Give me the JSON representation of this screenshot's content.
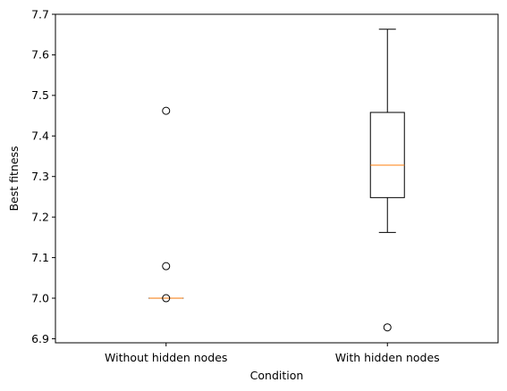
{
  "chart_data": {
    "type": "box",
    "xlabel": "Condition",
    "ylabel": "Best fitness",
    "ylim": [
      6.89,
      7.7
    ],
    "yticks": [
      6.9,
      7.0,
      7.1,
      7.2,
      7.3,
      7.4,
      7.5,
      7.6,
      7.7
    ],
    "ytick_labels": [
      "6.9",
      "7.0",
      "7.1",
      "7.2",
      "7.3",
      "7.4",
      "7.5",
      "7.6",
      "7.7"
    ],
    "grid": false,
    "categories": [
      "Without hidden nodes",
      "With hidden nodes"
    ],
    "boxes": [
      {
        "category": "Without hidden nodes",
        "whisker_low": 7.0,
        "q1": 7.0,
        "median": 7.0,
        "q3": 7.0,
        "whisker_high": 7.0,
        "outliers": [
          7.462,
          7.079,
          7.0
        ]
      },
      {
        "category": "With hidden nodes",
        "whisker_low": 7.162,
        "q1": 7.248,
        "median": 7.328,
        "q3": 7.458,
        "whisker_high": 7.663,
        "outliers": [
          6.928
        ]
      }
    ],
    "colors": {
      "box": "#000000",
      "median": "#ff7f0e",
      "flier": "#000000"
    }
  }
}
